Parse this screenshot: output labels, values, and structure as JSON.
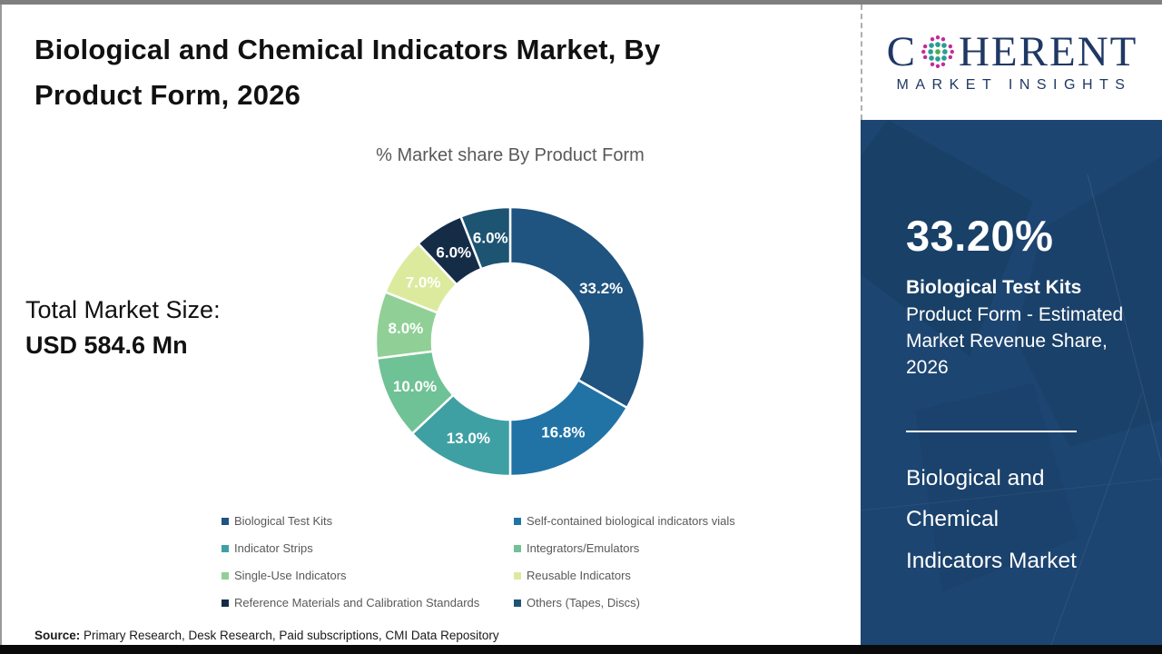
{
  "page": {
    "title": "Biological and Chemical Indicators Market, By\nProduct Form, 2026",
    "source_label": "Source:",
    "source_text": " Primary Research, Desk Research, Paid subscriptions, CMI Data Repository"
  },
  "total_market": {
    "label": "Total Market Size:",
    "value": "USD 584.6 Mn"
  },
  "logo": {
    "word_start": "C",
    "word_end": "HERENT",
    "tagline": "MARKET INSIGHTS",
    "navy": "#1F3864",
    "globe_outer": "#C5299B",
    "globe_mid": "#2B9E94",
    "globe_center": "#4CAF50"
  },
  "sidebar": {
    "highlight_value": "33.20%",
    "highlight_title": "Biological Test Kits",
    "highlight_desc": "Product Form - Estimated\nMarket Revenue Share,\n2026",
    "market_name": "Biological and\nChemical\nIndicators Market",
    "bg_color": "#1D4571"
  },
  "chart_data": {
    "type": "pie",
    "donut": true,
    "title": "% Market share By Product Form",
    "categories": [
      "Biological Test Kits",
      "Self-contained biological indicators vials",
      "Indicator Strips",
      "Integrators/Emulators",
      "Single-Use Indicators",
      "Reusable Indicators",
      "Reference Materials and Calibration Standards",
      "Others (Tapes, Discs)"
    ],
    "values": [
      33.2,
      16.8,
      13.0,
      10.0,
      8.0,
      7.0,
      6.0,
      6.0
    ],
    "data_labels": [
      "33.2%",
      "16.8%",
      "13.0%",
      "10.0%",
      "8.0%",
      "7.0%",
      "6.0%",
      "6.0%"
    ],
    "colors": [
      "#1F5380",
      "#2173A6",
      "#3FA0A4",
      "#6FC295",
      "#90D096",
      "#DCEA9E",
      "#152C47",
      "#1C5472"
    ],
    "start_angle_deg": 0,
    "direction": "clockwise",
    "outer_radius": 148,
    "inner_radius": 86,
    "label_radius": 116,
    "legend_position": "bottom"
  }
}
